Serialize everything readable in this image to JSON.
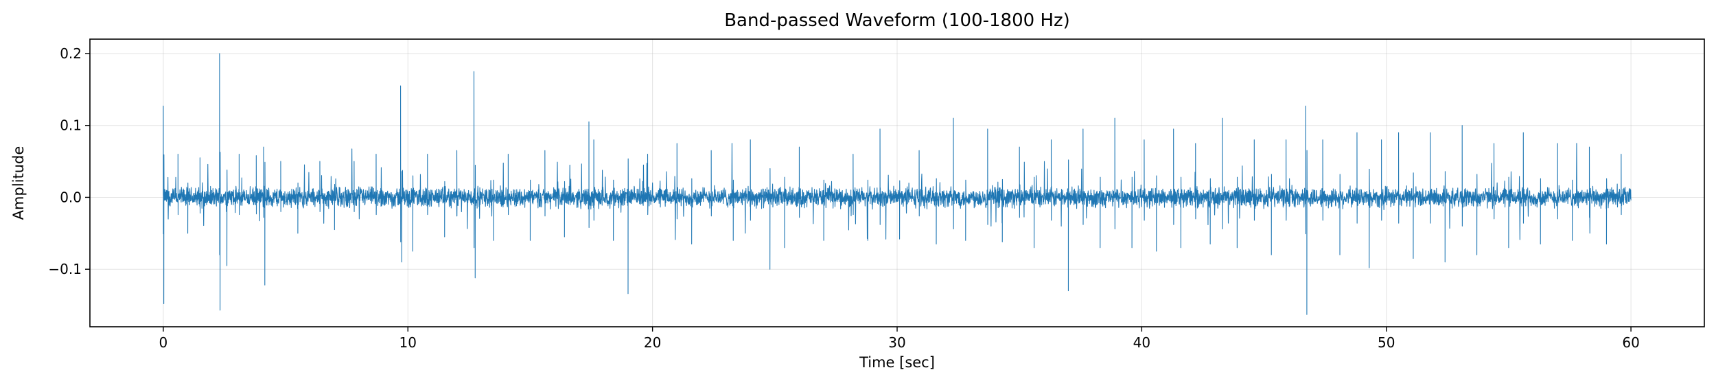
{
  "chart_data": {
    "type": "line",
    "title": "Band-passed Waveform (100-1800 Hz)",
    "xlabel": "Time [sec]",
    "ylabel": "Amplitude",
    "xlim": [
      -3,
      63
    ],
    "ylim": [
      -0.18,
      0.22
    ],
    "x_ticks": [
      0,
      10,
      20,
      30,
      40,
      50,
      60
    ],
    "x_tick_labels": [
      "0",
      "10",
      "20",
      "30",
      "40",
      "50",
      "60"
    ],
    "y_ticks": [
      -0.1,
      0.0,
      0.1,
      0.2
    ],
    "y_tick_labels": [
      "−0.1",
      "0.0",
      "0.1",
      "0.2"
    ],
    "grid": true,
    "series": [
      {
        "color": "#1f77b4",
        "x_start": 0,
        "x_end": 60,
        "baseline_amplitude": 0.012,
        "spikes": [
          {
            "x": 0.0,
            "y": 0.127
          },
          {
            "x": 0.02,
            "y": -0.148
          },
          {
            "x": 0.6,
            "y": 0.06
          },
          {
            "x": 1.0,
            "y": -0.05
          },
          {
            "x": 1.5,
            "y": 0.055
          },
          {
            "x": 2.3,
            "y": 0.2
          },
          {
            "x": 2.32,
            "y": -0.157
          },
          {
            "x": 2.6,
            "y": -0.095
          },
          {
            "x": 3.1,
            "y": 0.06
          },
          {
            "x": 3.8,
            "y": 0.058
          },
          {
            "x": 4.1,
            "y": 0.07
          },
          {
            "x": 4.15,
            "y": -0.122
          },
          {
            "x": 4.8,
            "y": 0.05
          },
          {
            "x": 5.5,
            "y": -0.05
          },
          {
            "x": 6.4,
            "y": 0.05
          },
          {
            "x": 7.0,
            "y": -0.045
          },
          {
            "x": 7.8,
            "y": 0.05
          },
          {
            "x": 8.7,
            "y": 0.06
          },
          {
            "x": 9.7,
            "y": 0.155
          },
          {
            "x": 9.75,
            "y": -0.09
          },
          {
            "x": 10.2,
            "y": -0.075
          },
          {
            "x": 10.8,
            "y": 0.06
          },
          {
            "x": 11.5,
            "y": -0.055
          },
          {
            "x": 12.0,
            "y": 0.065
          },
          {
            "x": 12.7,
            "y": 0.175
          },
          {
            "x": 12.75,
            "y": -0.112
          },
          {
            "x": 13.5,
            "y": -0.06
          },
          {
            "x": 14.1,
            "y": 0.06
          },
          {
            "x": 15.0,
            "y": -0.06
          },
          {
            "x": 15.6,
            "y": 0.065
          },
          {
            "x": 16.4,
            "y": -0.055
          },
          {
            "x": 17.4,
            "y": 0.105
          },
          {
            "x": 17.6,
            "y": 0.08
          },
          {
            "x": 18.4,
            "y": -0.06
          },
          {
            "x": 19.0,
            "y": -0.134
          },
          {
            "x": 19.8,
            "y": 0.06
          },
          {
            "x": 21.0,
            "y": 0.075
          },
          {
            "x": 21.6,
            "y": -0.065
          },
          {
            "x": 22.4,
            "y": 0.065
          },
          {
            "x": 23.3,
            "y": -0.06
          },
          {
            "x": 24.0,
            "y": 0.08
          },
          {
            "x": 24.8,
            "y": -0.1
          },
          {
            "x": 25.4,
            "y": -0.07
          },
          {
            "x": 26.0,
            "y": 0.07
          },
          {
            "x": 27.0,
            "y": -0.06
          },
          {
            "x": 28.2,
            "y": 0.06
          },
          {
            "x": 28.8,
            "y": -0.06
          },
          {
            "x": 29.3,
            "y": 0.095
          },
          {
            "x": 30.1,
            "y": -0.058
          },
          {
            "x": 30.9,
            "y": 0.065
          },
          {
            "x": 31.6,
            "y": -0.065
          },
          {
            "x": 32.3,
            "y": 0.11
          },
          {
            "x": 32.8,
            "y": -0.06
          },
          {
            "x": 33.7,
            "y": 0.095
          },
          {
            "x": 34.3,
            "y": -0.062
          },
          {
            "x": 35.0,
            "y": 0.07
          },
          {
            "x": 35.6,
            "y": -0.07
          },
          {
            "x": 36.3,
            "y": 0.08
          },
          {
            "x": 37.0,
            "y": -0.13
          },
          {
            "x": 37.6,
            "y": 0.095
          },
          {
            "x": 38.3,
            "y": -0.07
          },
          {
            "x": 38.9,
            "y": 0.11
          },
          {
            "x": 39.6,
            "y": -0.07
          },
          {
            "x": 40.1,
            "y": 0.08
          },
          {
            "x": 40.6,
            "y": -0.075
          },
          {
            "x": 41.3,
            "y": 0.095
          },
          {
            "x": 41.6,
            "y": -0.07
          },
          {
            "x": 42.2,
            "y": 0.075
          },
          {
            "x": 42.8,
            "y": -0.065
          },
          {
            "x": 43.3,
            "y": 0.11
          },
          {
            "x": 43.9,
            "y": -0.07
          },
          {
            "x": 44.6,
            "y": 0.08
          },
          {
            "x": 45.3,
            "y": -0.08
          },
          {
            "x": 45.9,
            "y": 0.08
          },
          {
            "x": 46.7,
            "y": 0.127
          },
          {
            "x": 46.75,
            "y": -0.163
          },
          {
            "x": 47.4,
            "y": 0.08
          },
          {
            "x": 48.1,
            "y": -0.08
          },
          {
            "x": 48.8,
            "y": 0.09
          },
          {
            "x": 49.3,
            "y": -0.098
          },
          {
            "x": 49.8,
            "y": 0.08
          },
          {
            "x": 50.5,
            "y": 0.09
          },
          {
            "x": 51.1,
            "y": -0.085
          },
          {
            "x": 51.8,
            "y": 0.09
          },
          {
            "x": 52.4,
            "y": -0.09
          },
          {
            "x": 53.1,
            "y": 0.1
          },
          {
            "x": 53.7,
            "y": -0.08
          },
          {
            "x": 54.4,
            "y": 0.075
          },
          {
            "x": 55.0,
            "y": -0.07
          },
          {
            "x": 55.6,
            "y": 0.09
          },
          {
            "x": 56.3,
            "y": -0.065
          },
          {
            "x": 57.0,
            "y": 0.075
          },
          {
            "x": 57.6,
            "y": -0.06
          },
          {
            "x": 58.3,
            "y": 0.07
          },
          {
            "x": 59.0,
            "y": -0.065
          },
          {
            "x": 59.6,
            "y": 0.06
          }
        ]
      }
    ]
  }
}
